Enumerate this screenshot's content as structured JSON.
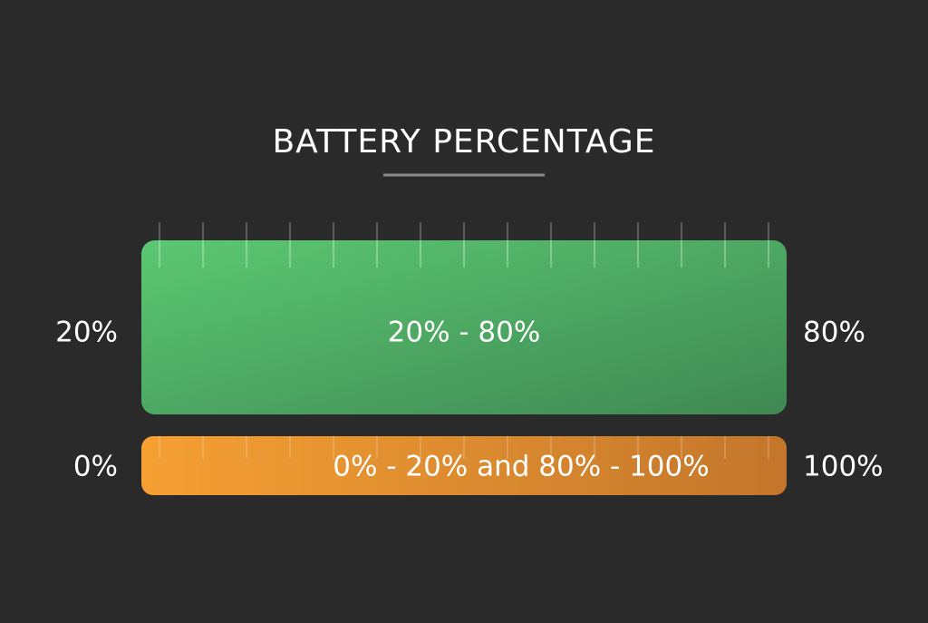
{
  "title": "BATTERY PERCENTAGE",
  "bars": [
    {
      "label": "20% - 80%",
      "left": "20%",
      "right": "80%"
    },
    {
      "label": "0% - 20% and  80% - 100%",
      "left": "0%",
      "right": "100%"
    }
  ]
}
